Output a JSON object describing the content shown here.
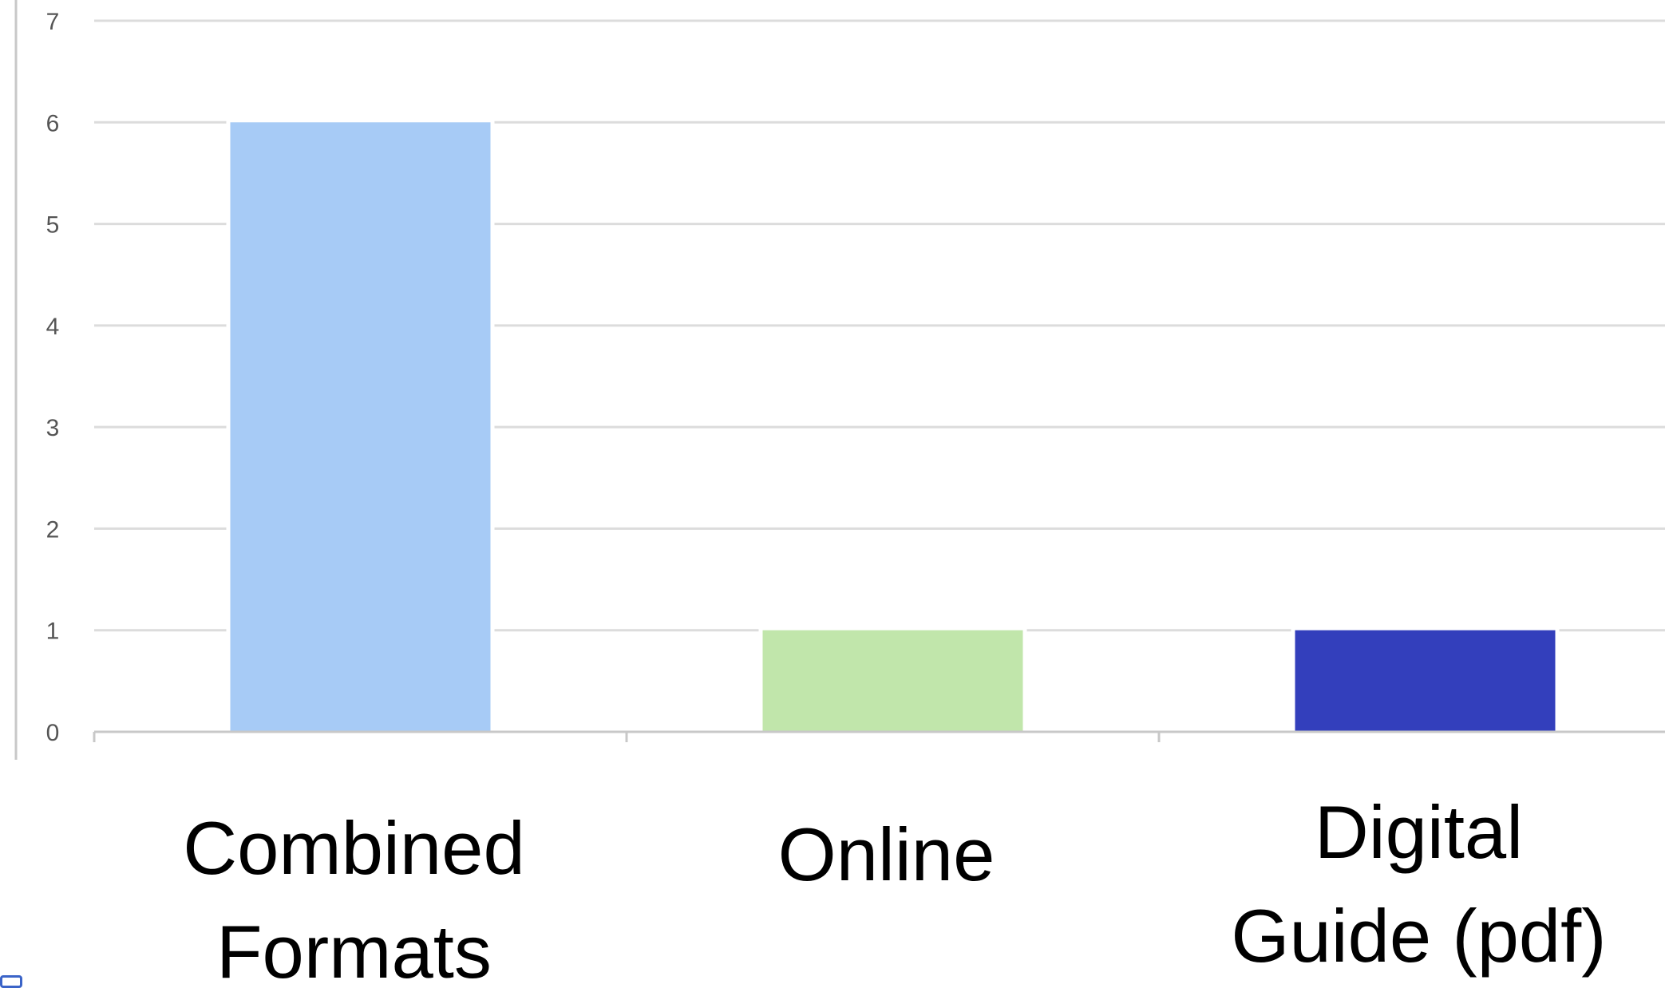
{
  "chart_data": {
    "type": "bar",
    "categories": [
      "Combined Formats",
      "Online",
      "Digital Guide (pdf)"
    ],
    "category_lines": [
      [
        "Combined",
        "Formats"
      ],
      [
        "Online"
      ],
      [
        "Digital",
        "Guide (pdf)"
      ]
    ],
    "values": [
      6,
      1,
      1
    ],
    "bar_colors": [
      "#a7cbf6",
      "#c1e6ab",
      "#333fbc"
    ],
    "ylim": [
      0,
      7
    ],
    "yticks": [
      "0",
      "1",
      "2",
      "3",
      "4",
      "5",
      "6",
      "7"
    ],
    "grid": true,
    "gridline_color": "#dcdcdc",
    "axis_color": "#c8c8c8",
    "title": "",
    "xlabel": "",
    "ylabel": ""
  }
}
